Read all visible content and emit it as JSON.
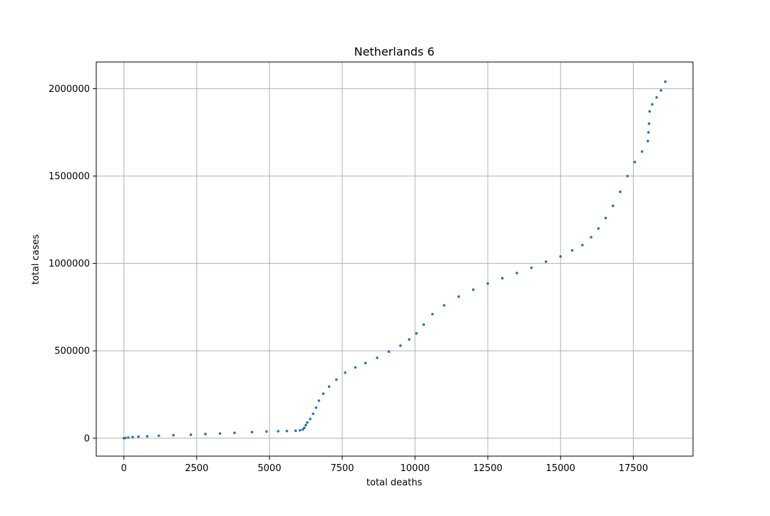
{
  "chart_data": {
    "type": "scatter",
    "title": "Netherlands 6",
    "xlabel": "total deaths",
    "ylabel": "total cases",
    "xlim": [
      -950,
      19550
    ],
    "ylim": [
      -102500,
      2152500
    ],
    "xticks": [
      0,
      2500,
      5000,
      7500,
      10000,
      12500,
      15000,
      17500
    ],
    "xtick_labels": [
      "0",
      "2500",
      "5000",
      "7500",
      "10000",
      "12500",
      "15000",
      "17500"
    ],
    "yticks": [
      0,
      500000,
      1000000,
      1500000,
      2000000
    ],
    "ytick_labels": [
      "0",
      "500000",
      "1000000",
      "1500000",
      "2000000"
    ],
    "grid": true,
    "marker_color": "#1f77b4",
    "series": [
      {
        "points": [
          [
            0,
            0
          ],
          [
            50,
            1500
          ],
          [
            150,
            4000
          ],
          [
            300,
            6500
          ],
          [
            500,
            9000
          ],
          [
            800,
            11000
          ],
          [
            1200,
            14000
          ],
          [
            1700,
            17000
          ],
          [
            2300,
            20000
          ],
          [
            2800,
            24000
          ],
          [
            3300,
            27000
          ],
          [
            3800,
            31000
          ],
          [
            4400,
            35000
          ],
          [
            4900,
            38000
          ],
          [
            5300,
            40000
          ],
          [
            5600,
            41000
          ],
          [
            5900,
            43000
          ],
          [
            6050,
            45000
          ],
          [
            6150,
            50000
          ],
          [
            6200,
            60000
          ],
          [
            6250,
            75000
          ],
          [
            6300,
            90000
          ],
          [
            6400,
            110000
          ],
          [
            6500,
            140000
          ],
          [
            6600,
            175000
          ],
          [
            6700,
            215000
          ],
          [
            6850,
            255000
          ],
          [
            7050,
            295000
          ],
          [
            7300,
            335000
          ],
          [
            7600,
            375000
          ],
          [
            7950,
            405000
          ],
          [
            8300,
            430000
          ],
          [
            8700,
            460000
          ],
          [
            9100,
            495000
          ],
          [
            9500,
            530000
          ],
          [
            9800,
            565000
          ],
          [
            10050,
            600000
          ],
          [
            10300,
            650000
          ],
          [
            10600,
            710000
          ],
          [
            11000,
            760000
          ],
          [
            11500,
            810000
          ],
          [
            12000,
            850000
          ],
          [
            12500,
            885000
          ],
          [
            13000,
            915000
          ],
          [
            13500,
            945000
          ],
          [
            14000,
            975000
          ],
          [
            14500,
            1010000
          ],
          [
            15000,
            1040000
          ],
          [
            15400,
            1075000
          ],
          [
            15750,
            1105000
          ],
          [
            16050,
            1150000
          ],
          [
            16300,
            1200000
          ],
          [
            16550,
            1260000
          ],
          [
            16800,
            1330000
          ],
          [
            17050,
            1410000
          ],
          [
            17300,
            1500000
          ],
          [
            17550,
            1580000
          ],
          [
            17800,
            1640000
          ],
          [
            18000,
            1700000
          ],
          [
            18020,
            1750000
          ],
          [
            18040,
            1800000
          ],
          [
            18060,
            1870000
          ],
          [
            18150,
            1910000
          ],
          [
            18300,
            1950000
          ],
          [
            18450,
            1990000
          ],
          [
            18600,
            2040000
          ]
        ]
      }
    ]
  }
}
